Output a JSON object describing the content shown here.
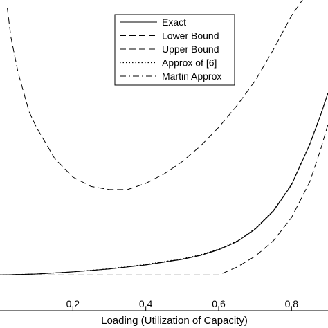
{
  "chart_data": {
    "type": "line",
    "title": "",
    "xlabel": "Loading (Utilization of Capacity)",
    "ylabel": "",
    "xlim": [
      0,
      0.9
    ],
    "ylim": [
      0,
      1
    ],
    "xticks": [
      0.2,
      0.4,
      0.6,
      0.8
    ],
    "xtick_labels": [
      "0.2",
      "0.4",
      "0.6",
      "0.8"
    ],
    "grid": false,
    "legend_position": "top-right",
    "series": [
      {
        "name": "Exact",
        "style": "solid",
        "x": [
          0.0,
          0.1,
          0.2,
          0.3,
          0.4,
          0.5,
          0.55,
          0.6,
          0.65,
          0.7,
          0.75,
          0.8,
          0.85,
          0.88,
          0.9
        ],
        "y": [
          0.115,
          0.118,
          0.125,
          0.134,
          0.147,
          0.165,
          0.178,
          0.196,
          0.222,
          0.262,
          0.32,
          0.405,
          0.535,
          0.63,
          0.7
        ]
      },
      {
        "name": "Lower Bound",
        "style": "dashed",
        "x": [
          0.0,
          0.1,
          0.2,
          0.3,
          0.4,
          0.5,
          0.55,
          0.6,
          0.65,
          0.7,
          0.75,
          0.8,
          0.85,
          0.88,
          0.9
        ],
        "y": [
          0.115,
          0.115,
          0.115,
          0.115,
          0.115,
          0.115,
          0.115,
          0.115,
          0.14,
          0.175,
          0.225,
          0.3,
          0.415,
          0.52,
          0.6
        ]
      },
      {
        "name": "Upper Bound",
        "style": "dashed",
        "x": [
          0.02,
          0.03,
          0.05,
          0.08,
          0.1,
          0.15,
          0.2,
          0.25,
          0.3,
          0.35,
          0.4,
          0.45,
          0.5,
          0.55,
          0.6,
          0.65,
          0.7,
          0.75,
          0.8,
          0.83,
          0.85
        ],
        "y": [
          0.975,
          0.88,
          0.765,
          0.64,
          0.59,
          0.49,
          0.43,
          0.4,
          0.39,
          0.39,
          0.41,
          0.44,
          0.48,
          0.53,
          0.59,
          0.66,
          0.74,
          0.84,
          0.95,
          1.0,
          1.03
        ]
      },
      {
        "name": "Approx of [6]",
        "style": "dotted",
        "x": [
          0.0,
          0.1,
          0.2,
          0.3,
          0.4,
          0.5,
          0.55,
          0.6,
          0.65,
          0.7,
          0.75,
          0.8,
          0.85,
          0.88,
          0.9
        ],
        "y": [
          0.115,
          0.118,
          0.125,
          0.135,
          0.149,
          0.167,
          0.18,
          0.198,
          0.224,
          0.264,
          0.322,
          0.407,
          0.537,
          0.632,
          0.702
        ]
      },
      {
        "name": "Martin Approx",
        "style": "dashdot",
        "x": [
          0.0,
          0.1,
          0.2,
          0.3,
          0.4,
          0.5,
          0.55,
          0.6,
          0.65,
          0.7,
          0.75,
          0.8,
          0.85,
          0.88,
          0.9
        ],
        "y": [
          0.115,
          0.118,
          0.125,
          0.134,
          0.148,
          0.166,
          0.179,
          0.197,
          0.223,
          0.263,
          0.321,
          0.406,
          0.536,
          0.631,
          0.701
        ]
      }
    ]
  }
}
